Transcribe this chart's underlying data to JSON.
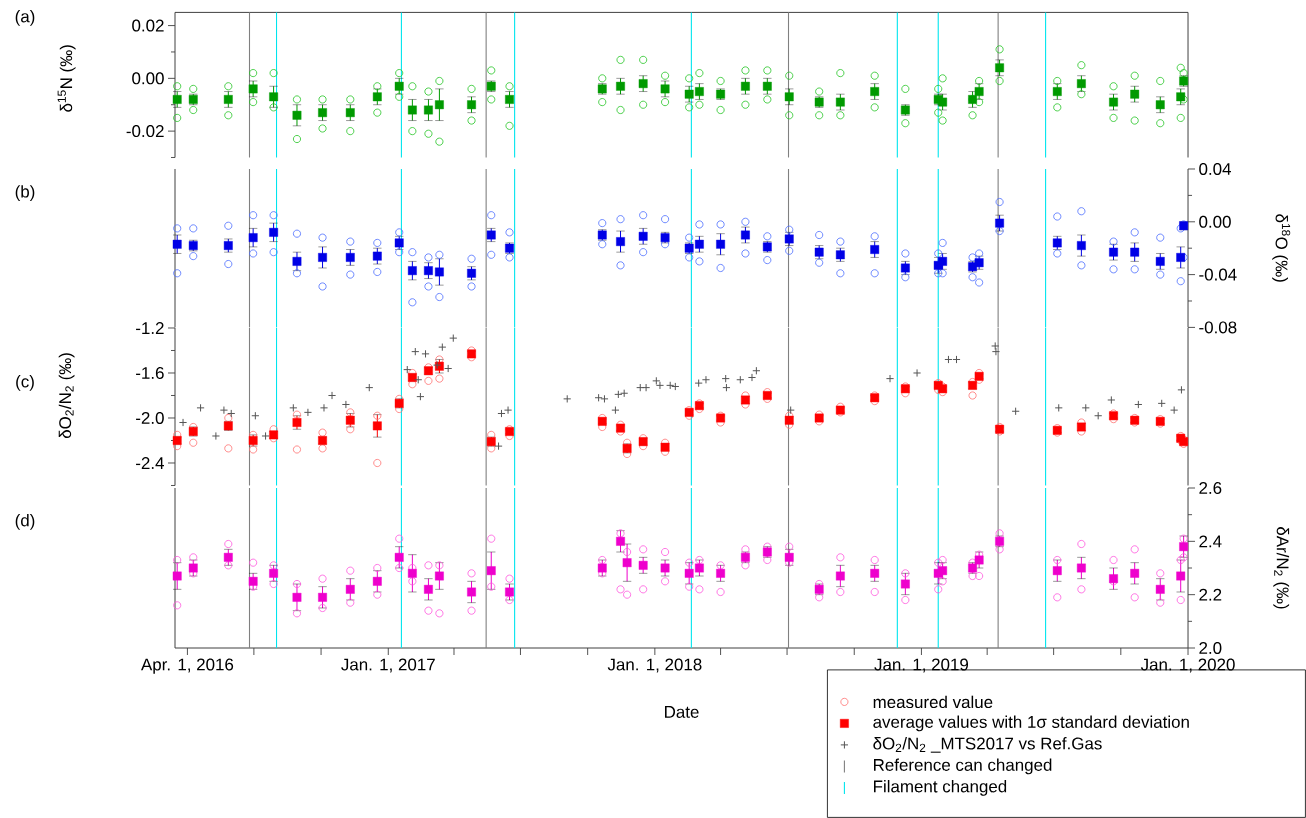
{
  "chart_data": [
    {
      "type": "scatter",
      "annotations": [
        "(a)"
      ],
      "ylabel": "δ$^{15}$N (‰)",
      "tick_labels": "y",
      "xlim": [
        "2016-03-15",
        "2020-01-01"
      ],
      "ylim": [
        -0.03,
        0.025
      ],
      "ref_lines": [
        {
          "axis": "x",
          "value": "2016-06-25",
          "color": "#808080"
        },
        {
          "axis": "x",
          "value": "2016-08-01",
          "color": "#00e5ee"
        },
        {
          "axis": "x",
          "value": "2017-01-19",
          "color": "#00e5ee"
        },
        {
          "axis": "x",
          "value": "2017-05-15",
          "color": "#808080"
        },
        {
          "axis": "x",
          "value": "2017-06-23",
          "color": "#00e5ee"
        },
        {
          "axis": "x",
          "value": "2018-02-20",
          "color": "#00e5ee"
        },
        {
          "axis": "x",
          "value": "2018-07-03",
          "color": "#808080"
        },
        {
          "axis": "x",
          "value": "2018-11-29",
          "color": "#00e5ee"
        },
        {
          "axis": "x",
          "value": "2019-01-24",
          "color": "#00e5ee"
        },
        {
          "axis": "x",
          "value": "2019-04-16",
          "color": "#808080"
        },
        {
          "axis": "x",
          "value": "2019-06-20",
          "color": "#00e5ee"
        }
      ],
      "yticks": [
        0.02,
        {
          "value": 0.01,
          "label": null
        },
        {
          "value": 0,
          "label": "0.00"
        },
        {
          "value": -0.01,
          "label": null
        },
        -0.02,
        {
          "value": -0.03,
          "label": null
        }
      ],
      "x": [
        "2016-03-18",
        "2016-04-09",
        "2016-05-27",
        "2016-06-30",
        "2016-07-28",
        "2016-08-29",
        "2016-10-03",
        "2016-11-10",
        "2016-12-17",
        "2017-01-16",
        "2017-02-03",
        "2017-02-25",
        "2017-03-12",
        "2017-04-25",
        "2017-05-22",
        "2017-06-16",
        "2017-10-21",
        "2017-11-15",
        "2017-12-16",
        "2018-01-15",
        "2018-02-17",
        "2018-03-03",
        "2018-04-01",
        "2018-05-05",
        "2018-06-04",
        "2018-07-04",
        "2018-08-14",
        "2018-09-12",
        "2018-10-29",
        "2018-12-10",
        "2019-01-24",
        "2019-01-30",
        "2019-03-12",
        "2019-03-21",
        "2019-04-18",
        "2019-07-06",
        "2019-08-08",
        "2019-09-21",
        "2019-10-20",
        "2019-11-24",
        "2019-12-22",
        "2019-12-26"
      ],
      "series": [
        {
          "color": "#22c422",
          "marker": "circle",
          "x": [
            "2016-03-18",
            "2016-03-18",
            "2016-04-09",
            "2016-04-09",
            "2016-05-27",
            "2016-05-27",
            "2016-06-30",
            "2016-06-30",
            "2016-07-28",
            "2016-07-28",
            "2016-08-29",
            "2016-08-29",
            "2016-10-03",
            "2016-10-03",
            "2016-11-10",
            "2016-11-10",
            "2016-12-17",
            "2016-12-17",
            "2017-01-16",
            "2017-01-16",
            "2017-02-03",
            "2017-02-03",
            "2017-02-25",
            "2017-02-25",
            "2017-03-12",
            "2017-03-12",
            "2017-04-25",
            "2017-04-25",
            "2017-05-22",
            "2017-05-22",
            "2017-06-16",
            "2017-06-16",
            "2017-10-21",
            "2017-10-21",
            "2017-11-15",
            "2017-11-15",
            "2017-12-16",
            "2017-12-16",
            "2018-01-15",
            "2018-01-15",
            "2018-02-17",
            "2018-02-17",
            "2018-03-03",
            "2018-03-03",
            "2018-04-01",
            "2018-04-01",
            "2018-05-05",
            "2018-05-05",
            "2018-06-04",
            "2018-06-04",
            "2018-07-04",
            "2018-07-04",
            "2018-08-14",
            "2018-08-14",
            "2018-09-12",
            "2018-09-12",
            "2018-10-29",
            "2018-10-29",
            "2018-12-10",
            "2018-12-10",
            "2019-01-24",
            "2019-01-24",
            "2019-01-30",
            "2019-01-30",
            "2019-03-12",
            "2019-03-12",
            "2019-03-21",
            "2019-03-21",
            "2019-04-18",
            "2019-04-18",
            "2019-07-06",
            "2019-07-06",
            "2019-08-08",
            "2019-08-08",
            "2019-09-21",
            "2019-09-21",
            "2019-10-20",
            "2019-10-20",
            "2019-11-24",
            "2019-11-24",
            "2019-12-22",
            "2019-12-22",
            "2019-12-26",
            "2019-12-26"
          ],
          "values": [
            -0.003,
            -0.015,
            -0.004,
            -0.012,
            -0.003,
            -0.014,
            0.002,
            -0.009,
            0.002,
            -0.011,
            -0.008,
            -0.023,
            -0.008,
            -0.019,
            -0.008,
            -0.02,
            -0.003,
            -0.013,
            0.002,
            -0.007,
            -0.003,
            -0.02,
            -0.005,
            -0.021,
            -0.001,
            -0.024,
            -0.004,
            -0.016,
            0.003,
            -0.008,
            -0.003,
            -0.018,
            0.0,
            -0.009,
            0.007,
            -0.012,
            0.007,
            -0.01,
            0.001,
            -0.009,
            0.0,
            -0.011,
            0.002,
            -0.01,
            -0.001,
            -0.012,
            0.003,
            -0.01,
            0.003,
            -0.008,
            0.001,
            -0.014,
            -0.005,
            -0.014,
            0.002,
            -0.014,
            0.001,
            -0.011,
            -0.004,
            -0.017,
            -0.004,
            -0.013,
            0.0,
            -0.016,
            -0.008,
            -0.014,
            -0.001,
            -0.009,
            0.011,
            -0.001,
            -0.001,
            -0.011,
            0.005,
            -0.006,
            -0.003,
            -0.015,
            0.001,
            -0.016,
            -0.001,
            -0.017,
            0.004,
            -0.015,
            0.002,
            -0.008
          ]
        },
        {
          "color": "#009a00",
          "marker": "square",
          "values": [
            -0.008,
            -0.008,
            -0.008,
            -0.004,
            -0.007,
            -0.014,
            -0.013,
            -0.013,
            -0.007,
            -0.003,
            -0.012,
            -0.012,
            -0.01,
            -0.01,
            -0.003,
            -0.008,
            -0.004,
            -0.003,
            -0.002,
            -0.004,
            -0.006,
            -0.005,
            -0.006,
            -0.003,
            -0.003,
            -0.007,
            -0.009,
            -0.009,
            -0.005,
            -0.012,
            -0.008,
            -0.009,
            -0.008,
            -0.005,
            0.004,
            -0.005,
            -0.002,
            -0.009,
            -0.006,
            -0.01,
            -0.007,
            -0.001
          ],
          "errors": [
            0.003,
            0.002,
            0.003,
            0.003,
            0.004,
            0.004,
            0.003,
            0.003,
            0.003,
            0.003,
            0.004,
            0.004,
            0.006,
            0.003,
            0.002,
            0.003,
            0.002,
            0.003,
            0.003,
            0.003,
            0.003,
            0.003,
            0.002,
            0.003,
            0.003,
            0.003,
            0.002,
            0.003,
            0.003,
            0.002,
            0.002,
            0.003,
            0.003,
            0.003,
            0.003,
            0.003,
            0.003,
            0.003,
            0.003,
            0.003,
            0.003,
            0.002
          ]
        }
      ]
    },
    {
      "type": "scatter",
      "annotations": [
        "(b)"
      ],
      "ylabel": "δ$^{18}$O (‰)",
      "tick_labels": "y",
      "xlim": [
        "2016-03-15",
        "2020-01-01"
      ],
      "ylim": [
        -0.08,
        0.04
      ],
      "ref_lines": [
        {
          "axis": "x",
          "value": "2016-06-25",
          "color": "#808080"
        },
        {
          "axis": "x",
          "value": "2016-08-01",
          "color": "#00e5ee"
        },
        {
          "axis": "x",
          "value": "2017-01-19",
          "color": "#00e5ee"
        },
        {
          "axis": "x",
          "value": "2017-05-15",
          "color": "#808080"
        },
        {
          "axis": "x",
          "value": "2017-06-23",
          "color": "#00e5ee"
        },
        {
          "axis": "x",
          "value": "2018-02-20",
          "color": "#00e5ee"
        },
        {
          "axis": "x",
          "value": "2018-07-03",
          "color": "#808080"
        },
        {
          "axis": "x",
          "value": "2018-11-29",
          "color": "#00e5ee"
        },
        {
          "axis": "x",
          "value": "2019-01-24",
          "color": "#00e5ee"
        },
        {
          "axis": "x",
          "value": "2019-04-16",
          "color": "#808080"
        },
        {
          "axis": "x",
          "value": "2019-06-20",
          "color": "#00e5ee"
        }
      ],
      "yticks": [
        0.04,
        {
          "value": 0.02,
          "label": null
        },
        {
          "value": 0,
          "label": "0.00"
        },
        {
          "value": -0.02,
          "label": null
        },
        -0.04,
        {
          "value": -0.06,
          "label": null
        },
        -0.08
      ],
      "x": [
        "2016-03-18",
        "2016-04-09",
        "2016-05-27",
        "2016-06-30",
        "2016-07-28",
        "2016-08-29",
        "2016-10-03",
        "2016-11-10",
        "2016-12-17",
        "2017-01-16",
        "2017-02-03",
        "2017-02-25",
        "2017-03-12",
        "2017-04-25",
        "2017-05-22",
        "2017-06-16",
        "2017-10-21",
        "2017-11-15",
        "2017-12-16",
        "2018-01-15",
        "2018-02-17",
        "2018-03-03",
        "2018-04-01",
        "2018-05-05",
        "2018-06-04",
        "2018-07-04",
        "2018-08-14",
        "2018-09-12",
        "2018-10-29",
        "2018-12-10",
        "2019-01-24",
        "2019-01-30",
        "2019-03-12",
        "2019-03-21",
        "2019-04-18",
        "2019-07-06",
        "2019-08-08",
        "2019-09-21",
        "2019-10-20",
        "2019-11-24",
        "2019-12-22",
        "2019-12-26"
      ],
      "series": [
        {
          "color": "#4a6cff",
          "marker": "circle",
          "x": [
            "2016-03-18",
            "2016-03-18",
            "2016-04-09",
            "2016-04-09",
            "2016-05-27",
            "2016-05-27",
            "2016-06-30",
            "2016-06-30",
            "2016-07-28",
            "2016-07-28",
            "2016-08-29",
            "2016-08-29",
            "2016-10-03",
            "2016-10-03",
            "2016-11-10",
            "2016-11-10",
            "2016-12-17",
            "2016-12-17",
            "2017-01-16",
            "2017-01-16",
            "2017-02-03",
            "2017-02-03",
            "2017-02-25",
            "2017-02-25",
            "2017-03-12",
            "2017-03-12",
            "2017-04-25",
            "2017-04-25",
            "2017-05-22",
            "2017-05-22",
            "2017-06-16",
            "2017-06-16",
            "2017-10-21",
            "2017-10-21",
            "2017-11-15",
            "2017-11-15",
            "2017-12-16",
            "2017-12-16",
            "2018-01-15",
            "2018-01-15",
            "2018-02-17",
            "2018-02-17",
            "2018-03-03",
            "2018-03-03",
            "2018-04-01",
            "2018-04-01",
            "2018-05-05",
            "2018-05-05",
            "2018-06-04",
            "2018-06-04",
            "2018-07-04",
            "2018-07-04",
            "2018-08-14",
            "2018-08-14",
            "2018-09-12",
            "2018-09-12",
            "2018-10-29",
            "2018-10-29",
            "2018-12-10",
            "2018-12-10",
            "2019-01-24",
            "2019-01-24",
            "2019-01-30",
            "2019-01-30",
            "2019-03-12",
            "2019-03-12",
            "2019-03-21",
            "2019-03-21",
            "2019-04-18",
            "2019-04-18",
            "2019-07-06",
            "2019-07-06",
            "2019-08-08",
            "2019-08-08",
            "2019-09-21",
            "2019-09-21",
            "2019-10-20",
            "2019-10-20",
            "2019-11-24",
            "2019-11-24",
            "2019-12-22",
            "2019-12-22",
            "2019-12-26",
            "2019-12-26"
          ],
          "values": [
            -0.005,
            -0.039,
            -0.005,
            -0.026,
            -0.003,
            -0.032,
            0.005,
            -0.024,
            0.005,
            -0.023,
            -0.009,
            -0.039,
            -0.012,
            -0.049,
            -0.015,
            -0.04,
            -0.016,
            -0.038,
            -0.008,
            -0.023,
            -0.023,
            -0.061,
            -0.027,
            -0.049,
            -0.025,
            -0.057,
            -0.028,
            -0.049,
            0.005,
            -0.025,
            -0.008,
            -0.027,
            -0.001,
            -0.017,
            0.002,
            -0.033,
            0.005,
            -0.023,
            0.002,
            -0.017,
            -0.012,
            -0.027,
            -0.002,
            -0.03,
            -0.002,
            -0.035,
            0.0,
            -0.024,
            -0.011,
            -0.029,
            -0.006,
            -0.022,
            -0.01,
            -0.031,
            -0.015,
            -0.039,
            -0.011,
            -0.039,
            -0.024,
            -0.042,
            -0.024,
            -0.039,
            -0.016,
            -0.039,
            -0.027,
            -0.042,
            -0.024,
            -0.046,
            0.015,
            -0.007,
            0.004,
            -0.024,
            0.008,
            -0.033,
            -0.015,
            -0.036,
            -0.008,
            -0.036,
            -0.012,
            -0.04,
            -0.005,
            -0.045,
            -0.002,
            -0.027
          ]
        },
        {
          "color": "#0000e6",
          "marker": "square",
          "values": [
            -0.017,
            -0.018,
            -0.018,
            -0.012,
            -0.008,
            -0.03,
            -0.027,
            -0.027,
            -0.026,
            -0.016,
            -0.037,
            -0.037,
            -0.038,
            -0.039,
            -0.01,
            -0.02,
            -0.01,
            -0.015,
            -0.011,
            -0.012,
            -0.02,
            -0.017,
            -0.017,
            -0.01,
            -0.019,
            -0.013,
            -0.023,
            -0.025,
            -0.021,
            -0.035,
            -0.033,
            -0.03,
            -0.034,
            -0.031,
            -0.001,
            -0.016,
            -0.018,
            -0.023,
            -0.023,
            -0.03,
            -0.027,
            -0.003
          ],
          "errors": [
            0.007,
            0.004,
            0.005,
            0.007,
            0.007,
            0.007,
            0.008,
            0.006,
            0.006,
            0.005,
            0.007,
            0.006,
            0.01,
            0.005,
            0.005,
            0.004,
            0.004,
            0.008,
            0.006,
            0.004,
            0.004,
            0.006,
            0.008,
            0.006,
            0.004,
            0.005,
            0.005,
            0.005,
            0.006,
            0.005,
            0.006,
            0.006,
            0.004,
            0.005,
            0.006,
            0.005,
            0.008,
            0.006,
            0.007,
            0.006,
            0.008,
            0.003
          ]
        }
      ]
    },
    {
      "type": "scatter",
      "annotations": [
        "(c)"
      ],
      "ylabel": "δO$_{2}$/N$_{2}$ (‰)",
      "tick_labels": "y",
      "legend": "bottom right",
      "xlim": [
        "2016-03-15",
        "2020-01-01"
      ],
      "ylim": [
        -2.6,
        -1.2
      ],
      "yticks": [
        -1.2,
        {
          "value": -1.4,
          "label": null
        },
        -1.6,
        {
          "value": -1.8,
          "label": null
        },
        {
          "value": -2.0,
          "label": "-2.0"
        },
        {
          "value": -2.2,
          "label": null
        },
        -2.4,
        {
          "value": -2.6,
          "label": null
        }
      ],
      "x": [
        "2016-03-18",
        "2016-04-09",
        "2016-05-27",
        "2016-06-30",
        "2016-07-28",
        "2016-08-29",
        "2016-10-03",
        "2016-11-10",
        "2016-12-17",
        "2017-01-16",
        "2017-02-03",
        "2017-02-25",
        "2017-03-12",
        "2017-04-25",
        "2017-05-22",
        "2017-06-16",
        "2017-10-21",
        "2017-11-15",
        "2017-11-24",
        "2017-12-16",
        "2018-01-15",
        "2018-02-17",
        "2018-03-03",
        "2018-04-01",
        "2018-05-05",
        "2018-06-04",
        "2018-07-04",
        "2018-08-14",
        "2018-09-12",
        "2018-10-29",
        "2018-12-10",
        "2019-01-24",
        "2019-01-30",
        "2019-03-12",
        "2019-03-21",
        "2019-04-18",
        "2019-07-06",
        "2019-08-08",
        "2019-09-21",
        "2019-10-20",
        "2019-11-24",
        "2019-12-22",
        "2019-12-26"
      ],
      "ref_lines": [
        {
          "axis": "x",
          "value": "2016-06-25",
          "label": "Reference can changed",
          "color": "#808080"
        },
        {
          "axis": "x",
          "value": "2016-08-01",
          "label": "Filament changed",
          "color": "#00e5ee"
        },
        {
          "axis": "x",
          "value": "2017-01-19",
          "color": "#00e5ee"
        },
        {
          "axis": "x",
          "value": "2017-05-15",
          "color": "#808080"
        },
        {
          "axis": "x",
          "value": "2017-06-23",
          "color": "#00e5ee"
        },
        {
          "axis": "x",
          "value": "2018-02-20",
          "color": "#00e5ee"
        },
        {
          "axis": "x",
          "value": "2018-07-03",
          "color": "#808080"
        },
        {
          "axis": "x",
          "value": "2018-11-29",
          "color": "#00e5ee"
        },
        {
          "axis": "x",
          "value": "2019-01-24",
          "color": "#00e5ee"
        },
        {
          "axis": "x",
          "value": "2019-04-16",
          "color": "#808080"
        },
        {
          "axis": "x",
          "value": "2019-06-20",
          "color": "#00e5ee"
        }
      ],
      "series": [
        {
          "name": "measured value",
          "color": "#ff7070",
          "marker": "circle",
          "x": [
            "2016-03-18",
            "2016-03-18",
            "2016-04-09",
            "2016-04-09",
            "2016-05-27",
            "2016-05-27",
            "2016-06-30",
            "2016-06-30",
            "2016-07-28",
            "2016-07-28",
            "2016-08-29",
            "2016-08-29",
            "2016-10-03",
            "2016-10-03",
            "2016-11-10",
            "2016-11-10",
            "2016-12-17",
            "2016-12-17",
            "2017-01-16",
            "2017-01-16",
            "2017-02-03",
            "2017-02-03",
            "2017-02-25",
            "2017-02-25",
            "2017-03-12",
            "2017-03-12",
            "2017-04-25",
            "2017-04-25",
            "2017-05-22",
            "2017-05-22",
            "2017-06-16",
            "2017-06-16",
            "2017-10-21",
            "2017-10-21",
            "2017-11-15",
            "2017-11-15",
            "2017-11-24",
            "2017-11-24",
            "2017-12-16",
            "2017-12-16",
            "2018-01-15",
            "2018-01-15",
            "2018-02-17",
            "2018-02-17",
            "2018-03-03",
            "2018-03-03",
            "2018-04-01",
            "2018-04-01",
            "2018-05-05",
            "2018-05-05",
            "2018-06-04",
            "2018-06-04",
            "2018-07-04",
            "2018-07-04",
            "2018-08-14",
            "2018-08-14",
            "2018-09-12",
            "2018-09-12",
            "2018-10-29",
            "2018-10-29",
            "2018-12-10",
            "2018-12-10",
            "2019-01-24",
            "2019-01-24",
            "2019-01-30",
            "2019-01-30",
            "2019-03-12",
            "2019-03-12",
            "2019-03-21",
            "2019-03-21",
            "2019-04-18",
            "2019-04-18",
            "2019-07-06",
            "2019-07-06",
            "2019-08-08",
            "2019-08-08",
            "2019-09-21",
            "2019-09-21",
            "2019-10-20",
            "2019-10-20",
            "2019-11-24",
            "2019-11-24",
            "2019-12-22",
            "2019-12-22",
            "2019-12-26",
            "2019-12-26"
          ],
          "values": [
            -2.15,
            -2.25,
            -2.08,
            -2.22,
            -2.0,
            -2.27,
            -2.15,
            -2.28,
            -2.1,
            -2.18,
            -1.97,
            -2.28,
            -2.13,
            -2.27,
            -1.95,
            -2.1,
            -1.98,
            -2.4,
            -1.83,
            -1.92,
            -1.6,
            -1.7,
            -1.55,
            -1.67,
            -1.48,
            -1.65,
            -1.4,
            -1.46,
            -2.15,
            -2.27,
            -2.1,
            -2.16,
            -2.0,
            -2.08,
            -2.06,
            -2.12,
            -2.22,
            -2.32,
            -2.18,
            -2.25,
            -2.22,
            -2.3,
            -1.93,
            -1.98,
            -1.87,
            -1.92,
            -1.98,
            -2.04,
            -1.8,
            -1.88,
            -1.77,
            -1.83,
            -1.98,
            -2.06,
            -1.97,
            -2.03,
            -1.9,
            -1.95,
            -1.8,
            -1.85,
            -1.72,
            -1.78,
            -1.69,
            -1.75,
            -1.72,
            -1.77,
            -1.68,
            -1.8,
            -1.6,
            -1.66,
            -2.08,
            -2.12,
            -2.09,
            -2.13,
            -2.04,
            -2.12,
            -1.96,
            -2.01,
            -2.0,
            -2.04,
            -2.01,
            -2.05,
            -2.16,
            -2.2,
            -2.19,
            -2.23
          ]
        },
        {
          "name": "average values with 1σ standard deviation",
          "color": "#ff0000",
          "marker": "square",
          "values": [
            -2.2,
            -2.12,
            -2.07,
            -2.2,
            -2.15,
            -2.04,
            -2.2,
            -2.02,
            -2.07,
            -1.87,
            -1.64,
            -1.58,
            -1.54,
            -1.43,
            -2.21,
            -2.12,
            -2.03,
            -2.09,
            -2.27,
            -2.21,
            -2.26,
            -1.95,
            -1.89,
            -2.0,
            -1.84,
            -1.8,
            -2.02,
            -2.0,
            -1.93,
            -1.82,
            -1.74,
            -1.71,
            -1.74,
            -1.71,
            -1.63,
            -2.1,
            -2.11,
            -2.08,
            -1.98,
            -2.02,
            -2.03,
            -2.18,
            -2.21
          ],
          "errors": [
            0.03,
            0.04,
            0.04,
            0.05,
            0.03,
            0.06,
            0.03,
            0.06,
            0.1,
            0.04,
            0.03,
            0.03,
            0.06,
            0.02,
            0.04,
            0.02,
            0.02,
            0.02,
            0.04,
            0.03,
            0.03,
            0.02,
            0.02,
            0.02,
            0.03,
            0.02,
            0.03,
            0.02,
            0.02,
            0.02,
            0.02,
            0.02,
            0.02,
            0.03,
            0.02,
            0.02,
            0.02,
            0.03,
            0.02,
            0.02,
            0.02,
            0.02,
            0.02
          ]
        },
        {
          "name": "δO$_{2}$/N$_{2}$ _MTS2017 vs Ref.Gas",
          "color": "#555555",
          "marker": "cross",
          "x": [
            "2016-03-26",
            "2016-04-19",
            "2016-05-10",
            "2016-05-21",
            "2016-05-31",
            "2016-07-03",
            "2016-07-17",
            "2016-08-24",
            "2016-09-13",
            "2016-10-05",
            "2016-10-16",
            "2016-11-04",
            "2016-12-06",
            "2017-01-27",
            "2017-02-07",
            "2017-02-11",
            "2017-02-14",
            "2017-02-21",
            "2017-03-09",
            "2017-03-16",
            "2017-03-24",
            "2017-03-31",
            "2017-06-01",
            "2017-06-05",
            "2017-06-14",
            "2017-09-03",
            "2017-10-16",
            "2017-10-24",
            "2017-11-08",
            "2017-11-12",
            "2017-11-20",
            "2017-12-12",
            "2017-12-20",
            "2018-01-03",
            "2018-01-08",
            "2018-01-22",
            "2018-01-29",
            "2018-03-02",
            "2018-03-12",
            "2018-04-08",
            "2018-04-09",
            "2018-04-28",
            "2018-05-14",
            "2018-05-20",
            "2018-07-06",
            "2018-11-19",
            "2018-12-26",
            "2019-02-07",
            "2019-02-18",
            "2019-04-12",
            "2019-04-13",
            "2019-05-10",
            "2019-07-08",
            "2019-08-14",
            "2019-08-31",
            "2019-09-18",
            "2019-10-25",
            "2019-11-26",
            "2019-12-13",
            "2019-12-23"
          ],
          "values": [
            -2.04,
            -1.91,
            -2.16,
            -1.93,
            -1.96,
            -1.98,
            -2.16,
            -1.91,
            -1.95,
            -1.91,
            -1.8,
            -1.88,
            -1.73,
            -1.57,
            -1.41,
            -1.66,
            -1.81,
            -1.43,
            -1.53,
            -1.37,
            -1.56,
            -1.29,
            -2.25,
            -1.96,
            -1.93,
            -1.83,
            -1.82,
            -1.83,
            -1.93,
            -1.79,
            -1.78,
            -1.73,
            -1.73,
            -1.67,
            -1.71,
            -1.71,
            -1.72,
            -1.69,
            -1.66,
            -1.65,
            -1.73,
            -1.66,
            -1.64,
            -1.58,
            -1.93,
            -1.65,
            -1.6,
            -1.48,
            -1.48,
            -1.36,
            -1.41,
            -1.94,
            -1.91,
            -1.91,
            -1.98,
            -1.84,
            -1.88,
            -1.87,
            -1.93,
            -1.75
          ]
        }
      ]
    },
    {
      "type": "scatter",
      "annotations": [
        "(d)"
      ],
      "ylabel": "δAr/N$_{2}$ (‰)",
      "xlabel": "Date",
      "xlim": [
        "2016-03-15",
        "2020-01-01"
      ],
      "ylim": [
        2.0,
        2.6
      ],
      "ref_lines": [
        {
          "axis": "x",
          "value": "2016-06-25",
          "color": "#808080"
        },
        {
          "axis": "x",
          "value": "2016-08-01",
          "color": "#00e5ee"
        },
        {
          "axis": "x",
          "value": "2017-01-19",
          "color": "#00e5ee"
        },
        {
          "axis": "x",
          "value": "2017-05-15",
          "color": "#808080"
        },
        {
          "axis": "x",
          "value": "2017-06-23",
          "color": "#00e5ee"
        },
        {
          "axis": "x",
          "value": "2018-02-20",
          "color": "#00e5ee"
        },
        {
          "axis": "x",
          "value": "2018-07-03",
          "color": "#808080"
        },
        {
          "axis": "x",
          "value": "2018-11-29",
          "color": "#00e5ee"
        },
        {
          "axis": "x",
          "value": "2019-01-24",
          "color": "#00e5ee"
        },
        {
          "axis": "x",
          "value": "2019-04-16",
          "color": "#808080"
        },
        {
          "axis": "x",
          "value": "2019-06-20",
          "color": "#00e5ee"
        }
      ],
      "xticks": [
        {
          "value": "2016-04-01",
          "label": "Apr. 1, 2016"
        },
        {
          "value": "2016-07-01",
          "label": null
        },
        {
          "value": "2016-10-01",
          "label": null
        },
        {
          "value": "2017-01-01",
          "label": "Jan. 1, 2017"
        },
        {
          "value": "2017-04-01",
          "label": null
        },
        {
          "value": "2017-07-01",
          "label": null
        },
        {
          "value": "2017-10-01",
          "label": null
        },
        {
          "value": "2018-01-01",
          "label": "Jan. 1, 2018"
        },
        {
          "value": "2018-04-01",
          "label": null
        },
        {
          "value": "2018-07-01",
          "label": null
        },
        {
          "value": "2018-10-01",
          "label": null
        },
        {
          "value": "2019-01-01",
          "label": "Jan. 1, 2019"
        },
        {
          "value": "2019-04-01",
          "label": null
        },
        {
          "value": "2019-07-01",
          "label": null
        },
        {
          "value": "2019-10-01",
          "label": null
        },
        {
          "value": "2020-01-01",
          "label": "Jan. 1, 2020"
        }
      ],
      "yticks": [
        {
          "value": 2.0,
          "label": "2.0"
        },
        {
          "value": 2.1,
          "label": null
        },
        2.2,
        {
          "value": 2.3,
          "label": null
        },
        2.4,
        {
          "value": 2.5,
          "label": null
        },
        2.6
      ],
      "x": [
        "2016-03-18",
        "2016-04-09",
        "2016-05-27",
        "2016-06-30",
        "2016-07-28",
        "2016-08-29",
        "2016-10-03",
        "2016-11-10",
        "2016-12-17",
        "2017-01-16",
        "2017-02-03",
        "2017-02-25",
        "2017-03-12",
        "2017-04-25",
        "2017-05-22",
        "2017-06-16",
        "2017-10-21",
        "2017-11-15",
        "2017-11-24",
        "2017-12-16",
        "2018-01-15",
        "2018-02-17",
        "2018-03-03",
        "2018-04-01",
        "2018-05-05",
        "2018-06-04",
        "2018-07-04",
        "2018-08-14",
        "2018-09-12",
        "2018-10-29",
        "2018-12-10",
        "2019-01-24",
        "2019-01-30",
        "2019-03-12",
        "2019-03-21",
        "2019-04-18",
        "2019-07-06",
        "2019-08-08",
        "2019-09-21",
        "2019-10-20",
        "2019-11-24",
        "2019-12-22",
        "2019-12-26"
      ],
      "series": [
        {
          "color": "#ff55dd",
          "marker": "circle",
          "x": [
            "2016-03-18",
            "2016-03-18",
            "2016-04-09",
            "2016-04-09",
            "2016-05-27",
            "2016-05-27",
            "2016-06-30",
            "2016-06-30",
            "2016-07-28",
            "2016-07-28",
            "2016-08-29",
            "2016-08-29",
            "2016-10-03",
            "2016-10-03",
            "2016-11-10",
            "2016-11-10",
            "2016-12-17",
            "2016-12-17",
            "2017-01-16",
            "2017-01-16",
            "2017-02-03",
            "2017-02-03",
            "2017-02-25",
            "2017-02-25",
            "2017-03-12",
            "2017-03-12",
            "2017-04-25",
            "2017-04-25",
            "2017-05-22",
            "2017-05-22",
            "2017-06-16",
            "2017-06-16",
            "2017-10-21",
            "2017-10-21",
            "2017-11-15",
            "2017-11-15",
            "2017-11-24",
            "2017-11-24",
            "2017-12-16",
            "2017-12-16",
            "2018-01-15",
            "2018-01-15",
            "2018-02-17",
            "2018-02-17",
            "2018-03-03",
            "2018-03-03",
            "2018-04-01",
            "2018-04-01",
            "2018-05-05",
            "2018-05-05",
            "2018-06-04",
            "2018-06-04",
            "2018-07-04",
            "2018-07-04",
            "2018-08-14",
            "2018-08-14",
            "2018-09-12",
            "2018-09-12",
            "2018-10-29",
            "2018-10-29",
            "2018-12-10",
            "2018-12-10",
            "2019-01-24",
            "2019-01-24",
            "2019-01-30",
            "2019-01-30",
            "2019-03-12",
            "2019-03-12",
            "2019-03-21",
            "2019-03-21",
            "2019-04-18",
            "2019-04-18",
            "2019-07-06",
            "2019-07-06",
            "2019-08-08",
            "2019-08-08",
            "2019-09-21",
            "2019-09-21",
            "2019-10-20",
            "2019-10-20",
            "2019-11-24",
            "2019-11-24",
            "2019-12-22",
            "2019-12-22",
            "2019-12-26",
            "2019-12-26"
          ],
          "values": [
            2.33,
            2.16,
            2.34,
            2.28,
            2.39,
            2.31,
            2.32,
            2.23,
            2.31,
            2.24,
            2.24,
            2.13,
            2.26,
            2.15,
            2.29,
            2.17,
            2.3,
            2.2,
            2.41,
            2.3,
            2.3,
            2.25,
            2.31,
            2.14,
            2.31,
            2.13,
            2.28,
            2.14,
            2.41,
            2.23,
            2.26,
            2.18,
            2.33,
            2.28,
            2.43,
            2.22,
            2.36,
            2.2,
            2.37,
            2.22,
            2.36,
            2.25,
            2.32,
            2.23,
            2.33,
            2.22,
            2.31,
            2.21,
            2.37,
            2.31,
            2.38,
            2.33,
            2.38,
            2.32,
            2.24,
            2.19,
            2.34,
            2.21,
            2.33,
            2.21,
            2.28,
            2.18,
            2.32,
            2.22,
            2.33,
            2.25,
            2.32,
            2.27,
            2.35,
            2.27,
            2.43,
            2.37,
            2.33,
            2.19,
            2.39,
            2.22,
            2.33,
            2.25,
            2.37,
            2.19,
            2.28,
            2.17,
            2.33,
            2.18,
            2.41,
            2.34
          ]
        },
        {
          "color": "#ee00cc",
          "marker": "square",
          "values": [
            2.27,
            2.3,
            2.34,
            2.25,
            2.28,
            2.19,
            2.19,
            2.22,
            2.25,
            2.34,
            2.28,
            2.22,
            2.27,
            2.21,
            2.29,
            2.21,
            2.3,
            2.4,
            2.32,
            2.31,
            2.3,
            2.28,
            2.3,
            2.28,
            2.34,
            2.36,
            2.34,
            2.22,
            2.27,
            2.28,
            2.24,
            2.28,
            2.29,
            2.3,
            2.33,
            2.4,
            2.29,
            2.3,
            2.26,
            2.28,
            2.22,
            2.27,
            2.38
          ],
          "errors": [
            0.05,
            0.03,
            0.03,
            0.03,
            0.03,
            0.05,
            0.04,
            0.04,
            0.04,
            0.04,
            0.07,
            0.04,
            0.05,
            0.04,
            0.07,
            0.03,
            0.03,
            0.04,
            0.07,
            0.03,
            0.03,
            0.04,
            0.03,
            0.03,
            0.02,
            0.02,
            0.03,
            0.02,
            0.04,
            0.03,
            0.04,
            0.04,
            0.03,
            0.02,
            0.03,
            0.02,
            0.04,
            0.04,
            0.04,
            0.04,
            0.04,
            0.06,
            0.04
          ]
        }
      ]
    }
  ]
}
